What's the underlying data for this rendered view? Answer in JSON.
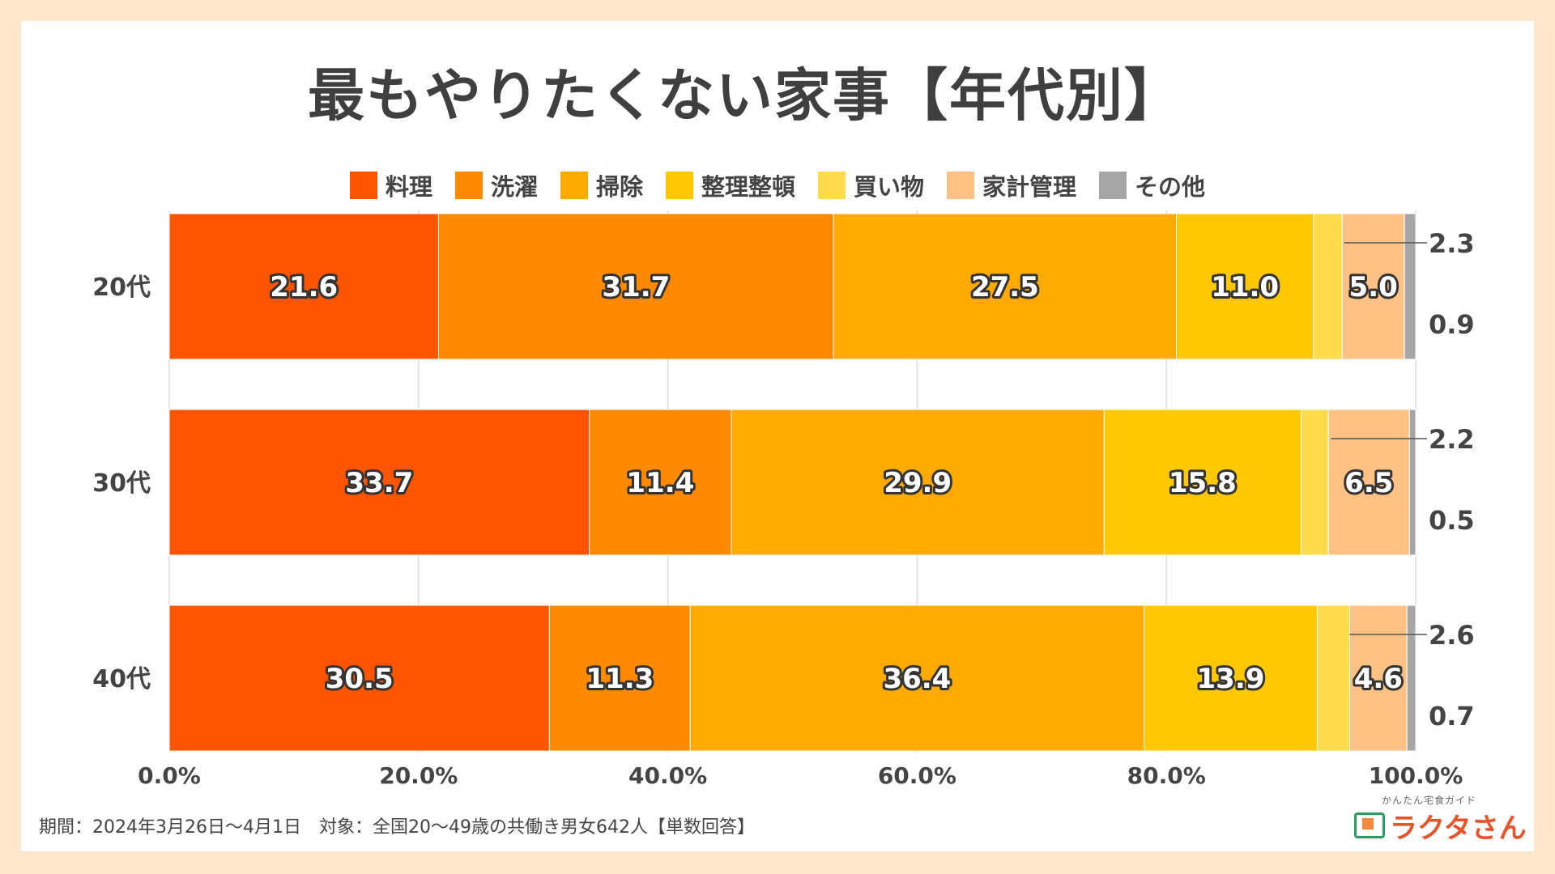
{
  "title": "最もやりたくない家事【年代別】",
  "footer": "期間：2024年3月26日～4月1日　対象：全国20～49歳の共働き男女642人【単数回答】",
  "logo": {
    "sub": "かんたん宅食ガイド",
    "main": "ラクタさん"
  },
  "chart_data": {
    "type": "bar",
    "orientation": "horizontal-stacked-100",
    "title": "最もやりたくない家事【年代別】",
    "categories": [
      "20代",
      "30代",
      "40代"
    ],
    "series": [
      {
        "name": "料理",
        "color": "#ff5500",
        "values": [
          21.6,
          33.7,
          30.5
        ]
      },
      {
        "name": "洗濯",
        "color": "#ff8a00",
        "values": [
          31.7,
          11.4,
          11.3
        ]
      },
      {
        "name": "掃除",
        "color": "#ffaa00",
        "values": [
          27.5,
          29.9,
          36.4
        ]
      },
      {
        "name": "整理整頓",
        "color": "#ffc800",
        "values": [
          11.0,
          15.8,
          13.9
        ]
      },
      {
        "name": "買い物",
        "color": "#ffdb4d",
        "values": [
          2.3,
          2.2,
          2.6
        ]
      },
      {
        "name": "家計管理",
        "color": "#ffc184",
        "values": [
          5.0,
          6.5,
          4.6
        ]
      },
      {
        "name": "その他",
        "color": "#a6a6a6",
        "values": [
          0.9,
          0.5,
          0.7
        ]
      }
    ],
    "data_labels": [
      [
        "21.6",
        "31.7",
        "27.5",
        "11.0",
        "2.3",
        "5.0",
        "0.9"
      ],
      [
        "33.7",
        "11.4",
        "29.9",
        "15.8",
        "2.2",
        "6.5",
        "0.5"
      ],
      [
        "30.5",
        "11.3",
        "36.4",
        "13.9",
        "2.6",
        "4.6",
        "0.7"
      ]
    ],
    "xlim": [
      0,
      100
    ],
    "xticks": [
      "0.0%",
      "20.0%",
      "40.0%",
      "60.0%",
      "80.0%",
      "100.0%"
    ],
    "grid": true,
    "legend": "top"
  }
}
